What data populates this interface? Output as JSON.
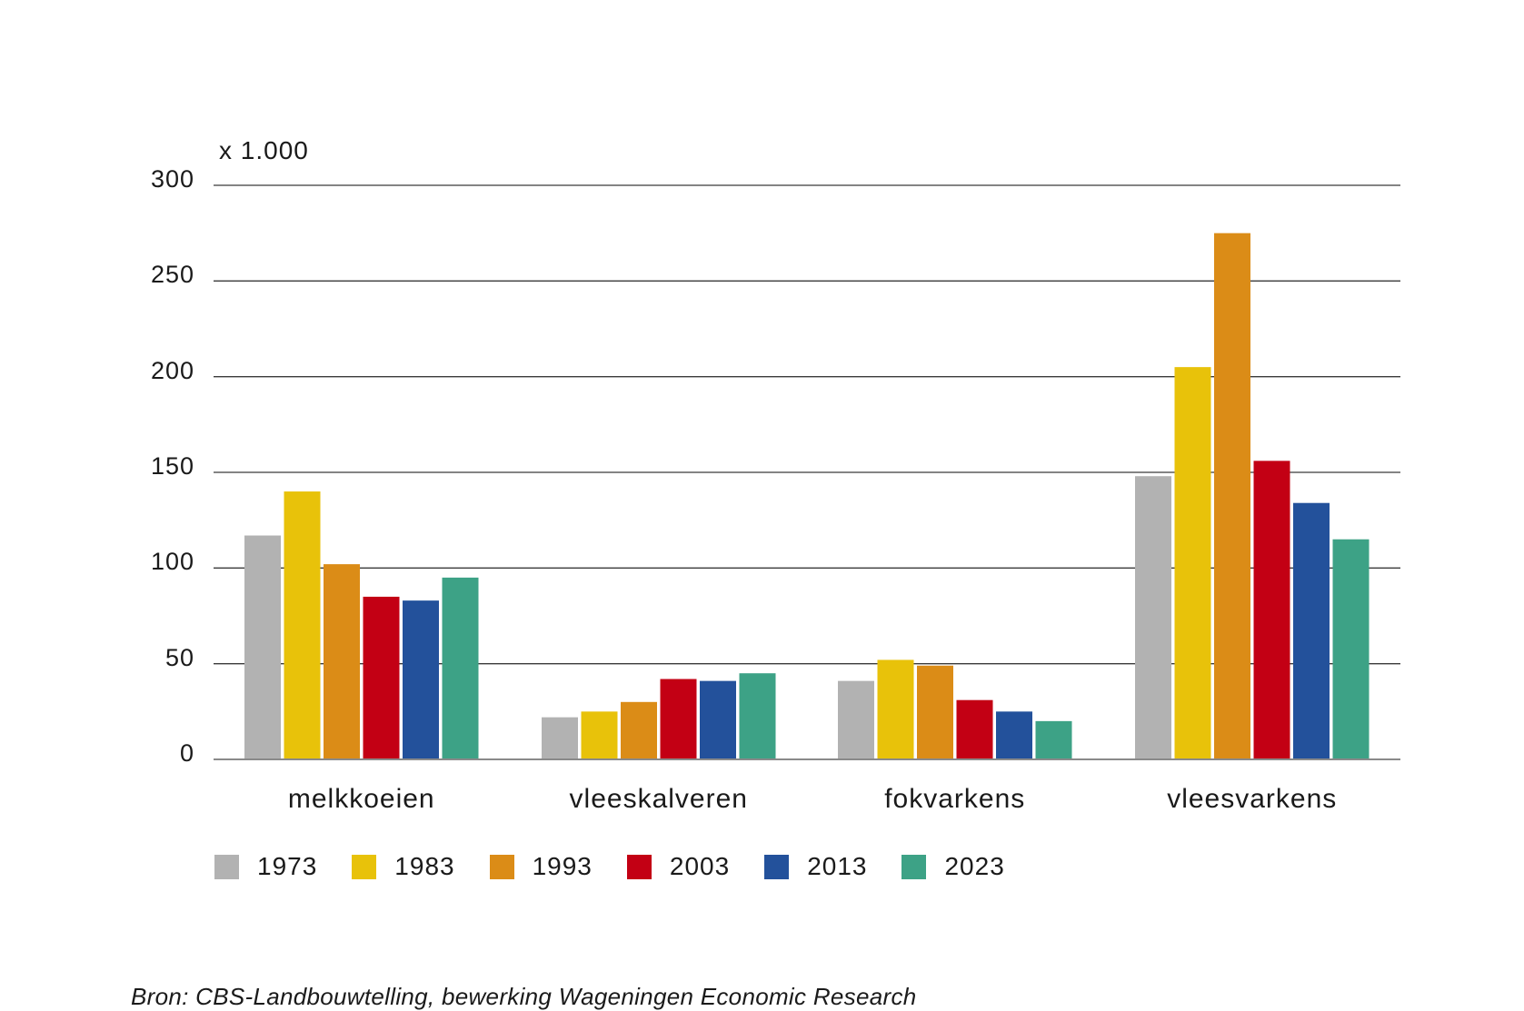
{
  "chart_data": {
    "type": "bar",
    "unit_label": "x 1.000",
    "categories": [
      "melkkoeien",
      "vleeskalveren",
      "fokvarkens",
      "vleesvarkens"
    ],
    "series": [
      {
        "name": "1973",
        "color": "#b2b2b2",
        "values": [
          117,
          22,
          41,
          148
        ]
      },
      {
        "name": "1983",
        "color": "#e8c20a",
        "values": [
          140,
          25,
          52,
          205
        ]
      },
      {
        "name": "1993",
        "color": "#db8c17",
        "values": [
          102,
          30,
          49,
          275
        ]
      },
      {
        "name": "2003",
        "color": "#c30014",
        "values": [
          85,
          42,
          31,
          156
        ]
      },
      {
        "name": "2013",
        "color": "#23519b",
        "values": [
          83,
          41,
          25,
          134
        ]
      },
      {
        "name": "2023",
        "color": "#3da286",
        "values": [
          95,
          45,
          20,
          115
        ]
      }
    ],
    "yticks": [
      "0",
      "50",
      "100",
      "150",
      "200",
      "250",
      "300"
    ],
    "ylim": [
      0,
      300
    ],
    "grid": true,
    "legend_position": "bottom-left"
  },
  "source": "Bron: CBS-Landbouwtelling, bewerking Wageningen Economic Research"
}
